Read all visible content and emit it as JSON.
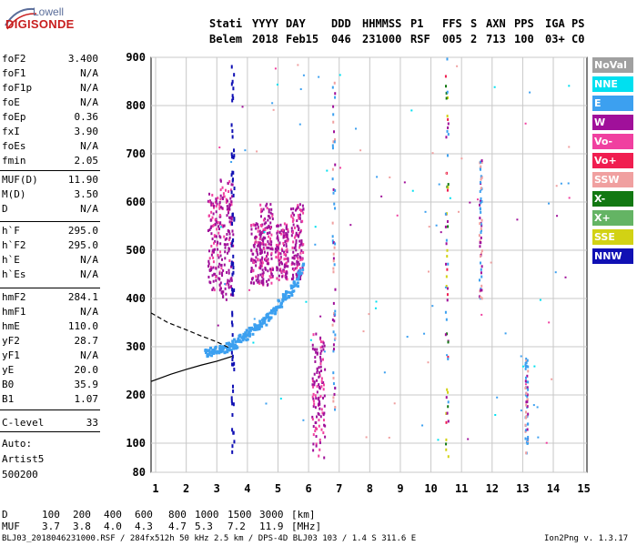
{
  "logo": {
    "line1": "Lowell",
    "line2": "DIGISONDE"
  },
  "header": {
    "row1": [
      "Stati",
      "YYYY",
      "DAY",
      "DDD",
      "HHMMSS",
      "P1",
      "FFS",
      "S",
      "AXN",
      "PPS",
      "IGA",
      "PS"
    ],
    "row2": [
      "Belem",
      "2018",
      "Feb15",
      "046",
      "231000",
      "RSF",
      "005",
      "2",
      "713",
      "100",
      "03+",
      "C0"
    ]
  },
  "params": [
    {
      "k": "foF2",
      "v": "3.400"
    },
    {
      "k": "foF1",
      "v": "N/A"
    },
    {
      "k": "foF1p",
      "v": "N/A"
    },
    {
      "k": "foE",
      "v": "N/A"
    },
    {
      "k": "foEp",
      "v": "0.36"
    },
    {
      "k": "fxI",
      "v": "3.90"
    },
    {
      "k": "foEs",
      "v": "N/A"
    },
    {
      "k": "fmin",
      "v": "2.05"
    },
    {
      "k": "MUF(D)",
      "v": "11.90"
    },
    {
      "k": "M(D)",
      "v": "3.50"
    },
    {
      "k": "D",
      "v": "N/A"
    },
    {
      "k": "h`F",
      "v": "295.0"
    },
    {
      "k": "h`F2",
      "v": "295.0"
    },
    {
      "k": "h`E",
      "v": "N/A"
    },
    {
      "k": "h`Es",
      "v": "N/A"
    },
    {
      "k": "hmF2",
      "v": "284.1"
    },
    {
      "k": "hmF1",
      "v": "N/A"
    },
    {
      "k": "hmE",
      "v": "110.0"
    },
    {
      "k": "yF2",
      "v": "28.7"
    },
    {
      "k": "yF1",
      "v": "N/A"
    },
    {
      "k": "yE",
      "v": "20.0"
    },
    {
      "k": "B0",
      "v": "35.9"
    },
    {
      "k": "B1",
      "v": "1.07"
    },
    {
      "k": "C-level",
      "v": "33"
    }
  ],
  "auto": [
    "Auto:",
    "Artist5",
    "500200"
  ],
  "legend": [
    {
      "label": "NoVal",
      "color": "#a0a0a0"
    },
    {
      "label": "NNE",
      "color": "#00e0f0"
    },
    {
      "label": "E",
      "color": "#3ca0f0"
    },
    {
      "label": "W",
      "color": "#a0109a"
    },
    {
      "label": "Vo-",
      "color": "#f040a0"
    },
    {
      "label": "Vo+",
      "color": "#f01e50"
    },
    {
      "label": "SSW",
      "color": "#f0a0a0"
    },
    {
      "label": "X-",
      "color": "#127812"
    },
    {
      "label": "X+",
      "color": "#64b464"
    },
    {
      "label": "SSE",
      "color": "#d2d214"
    },
    {
      "label": "NNW",
      "color": "#1010b4"
    }
  ],
  "muf_table": {
    "d_label": "D",
    "d_values": [
      "100",
      "200",
      "400",
      "600",
      "800",
      "1000",
      "1500",
      "3000"
    ],
    "d_unit": "[km]",
    "muf_label": "MUF",
    "muf_values": [
      "3.7",
      "3.8",
      "4.0",
      "4.3",
      "4.7",
      "5.3",
      "7.2",
      "11.9"
    ],
    "muf_unit": "[MHz]"
  },
  "footer": {
    "left": "BLJ03_2018046231000.RSF / 284fx512h 50 kHz 2.5 km / DPS-4D BLJ03 103 / 1.4 S 311.6 E",
    "right": "Ion2Png v. 1.3.17"
  },
  "chart_data": {
    "type": "scatter",
    "title": "",
    "xlabel": "",
    "ylabel": "",
    "x_ticks": [
      1,
      2,
      3,
      4,
      5,
      6,
      7,
      8,
      9,
      10,
      11,
      12,
      13,
      14,
      15
    ],
    "y_ticks": [
      80,
      100,
      200,
      300,
      400,
      500,
      600,
      700,
      800,
      900
    ],
    "xlim": [
      0.85,
      15.1
    ],
    "ylim": [
      80,
      900
    ],
    "y_scale": "piecewise",
    "grid": true,
    "trace_ordinary": {
      "x": [
        2.6,
        2.8,
        3.0,
        3.2,
        3.4,
        3.6,
        3.8,
        4.0,
        4.2,
        4.4,
        4.6,
        4.8,
        5.0,
        5.2,
        5.4,
        5.6,
        5.8
      ],
      "y": [
        290,
        292,
        295,
        298,
        303,
        310,
        320,
        330,
        340,
        350,
        360,
        375,
        390,
        405,
        420,
        440,
        470
      ]
    },
    "w_columns": [
      {
        "x": 2.9,
        "y": [
          420,
          620
        ]
      },
      {
        "x": 3.3,
        "y": [
          400,
          650
        ]
      },
      {
        "x": 4.3,
        "y": [
          430,
          560
        ]
      },
      {
        "x": 4.6,
        "y": [
          430,
          600
        ]
      },
      {
        "x": 5.1,
        "y": [
          440,
          560
        ]
      },
      {
        "x": 5.6,
        "y": [
          440,
          600
        ]
      },
      {
        "x": 6.3,
        "y": [
          90,
          330
        ]
      }
    ],
    "high_freq_columns": [
      {
        "x": 6.8,
        "y": [
          170,
          900
        ]
      },
      {
        "x": 10.5,
        "y": [
          90,
          900
        ]
      },
      {
        "x": 11.6,
        "y": [
          400,
          690
        ]
      },
      {
        "x": 13.1,
        "y": [
          90,
          280
        ]
      }
    ],
    "profile_solid": {
      "x": [
        0.85,
        1.5,
        2.0,
        2.5,
        3.0,
        3.5
      ],
      "y": [
        228,
        243,
        253,
        262,
        270,
        280
      ]
    },
    "profile_dashed": {
      "x": [
        0.85,
        1.4,
        2.0,
        2.5,
        3.0,
        3.4
      ],
      "y": [
        370,
        350,
        335,
        322,
        310,
        298
      ]
    }
  }
}
